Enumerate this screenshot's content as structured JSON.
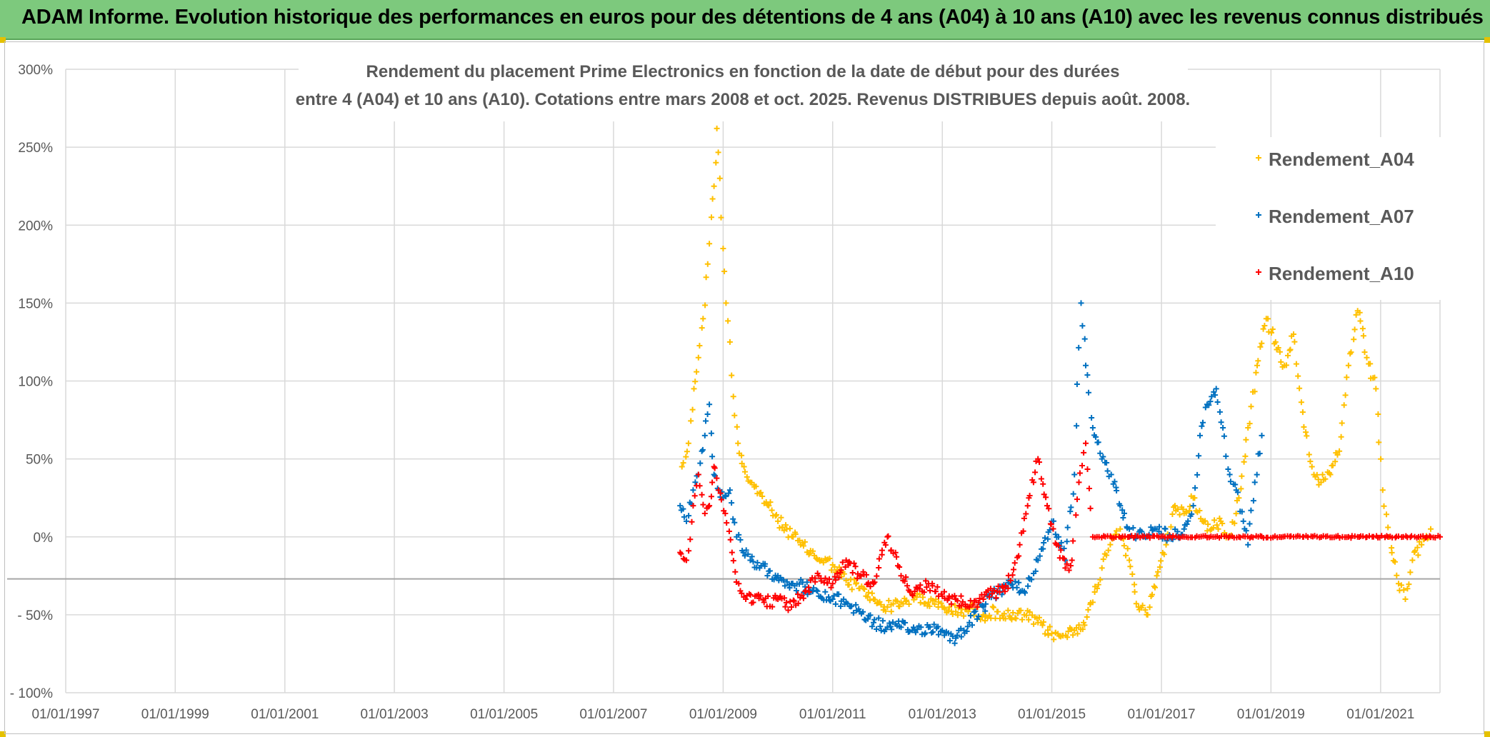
{
  "banner": {
    "title": "ADAM Informe. Evolution historique des performances en euros pour des détentions de 4 ans (A04) à 10 ans (A10) avec les revenus connus distribués"
  },
  "colors": {
    "banner": "#7dc97d",
    "grid": "#d9d9d9",
    "text": "#595959",
    "A04": "#ffc000",
    "A07": "#0070c0",
    "A10": "#ff0000"
  },
  "chart_data": {
    "type": "scatter",
    "title_lines": [
      "Rendement du placement Prime Electronics  en fonction de la date de début pour des durées",
      "entre 4 (A04) et 10 ans (A10). Cotations entre mars 2008 et oct. 2025. Revenus DISTRIBUES depuis août. 2008."
    ],
    "xlabel": "",
    "ylabel": "",
    "x_range": [
      "1997-01-01",
      "2022-02-01"
    ],
    "y_range": [
      -100,
      300
    ],
    "x_ticks": [
      "01/01/1997",
      "01/01/1999",
      "01/01/2001",
      "01/01/2003",
      "01/01/2005",
      "01/01/2007",
      "01/01/2009",
      "01/01/2011",
      "01/01/2013",
      "01/01/2015",
      "01/01/2017",
      "01/01/2019",
      "01/01/2021"
    ],
    "x_tick_dates": [
      "1997-01-01",
      "1999-01-01",
      "2001-01-01",
      "2003-01-01",
      "2005-01-01",
      "2007-01-01",
      "2009-01-01",
      "2011-01-01",
      "2013-01-01",
      "2015-01-01",
      "2017-01-01",
      "2019-01-01",
      "2021-01-01"
    ],
    "y_ticks": [
      300,
      250,
      200,
      150,
      100,
      50,
      0,
      -50,
      -100
    ],
    "y_tick_labels": [
      "300%",
      "250%",
      "200%",
      "150%",
      "100%",
      "50%",
      "0%",
      "- 50%",
      "- 100%"
    ],
    "grid": true,
    "legend_position": "top-right",
    "marker": "+",
    "series": [
      {
        "name": "Rendement_A04",
        "color": "#ffc000",
        "points": [
          [
            "2008-04-01",
            45
          ],
          [
            "2008-05-15",
            60
          ],
          [
            "2008-06-20",
            95
          ],
          [
            "2008-07-20",
            115
          ],
          [
            "2008-08-20",
            140
          ],
          [
            "2008-09-20",
            175
          ],
          [
            "2008-10-15",
            205
          ],
          [
            "2008-11-01",
            225
          ],
          [
            "2008-11-20",
            262
          ],
          [
            "2008-12-10",
            230
          ],
          [
            "2009-01-01",
            185
          ],
          [
            "2009-01-20",
            150
          ],
          [
            "2009-02-15",
            125
          ],
          [
            "2009-03-10",
            90
          ],
          [
            "2009-04-10",
            60
          ],
          [
            "2009-05-20",
            45
          ],
          [
            "2009-07-01",
            35
          ],
          [
            "2009-09-01",
            28
          ],
          [
            "2009-11-01",
            20
          ],
          [
            "2010-01-01",
            10
          ],
          [
            "2010-03-01",
            5
          ],
          [
            "2010-06-01",
            -5
          ],
          [
            "2010-09-01",
            -12
          ],
          [
            "2011-01-01",
            -18
          ],
          [
            "2011-04-01",
            -28
          ],
          [
            "2011-07-01",
            -33
          ],
          [
            "2011-10-01",
            -40
          ],
          [
            "2012-01-01",
            -45
          ],
          [
            "2012-04-01",
            -42
          ],
          [
            "2012-07-01",
            -38
          ],
          [
            "2012-10-01",
            -42
          ],
          [
            "2013-01-01",
            -45
          ],
          [
            "2013-04-01",
            -48
          ],
          [
            "2013-07-01",
            -46
          ],
          [
            "2013-10-01",
            -50
          ],
          [
            "2014-01-01",
            -48
          ],
          [
            "2014-04-01",
            -52
          ],
          [
            "2014-07-01",
            -50
          ],
          [
            "2014-10-01",
            -55
          ],
          [
            "2015-01-01",
            -62
          ],
          [
            "2015-03-01",
            -64
          ],
          [
            "2015-06-01",
            -60
          ],
          [
            "2015-08-01",
            -55
          ],
          [
            "2015-10-01",
            -42
          ],
          [
            "2015-12-01",
            -20
          ],
          [
            "2016-02-01",
            0
          ],
          [
            "2016-04-01",
            5
          ],
          [
            "2016-06-01",
            -15
          ],
          [
            "2016-08-01",
            -45
          ],
          [
            "2016-10-01",
            -50
          ],
          [
            "2016-12-01",
            -25
          ],
          [
            "2017-02-01",
            -5
          ],
          [
            "2017-04-01",
            20
          ],
          [
            "2017-06-01",
            15
          ],
          [
            "2017-08-01",
            25
          ],
          [
            "2017-10-01",
            10
          ],
          [
            "2017-12-01",
            5
          ],
          [
            "2018-02-01",
            10
          ],
          [
            "2018-04-01",
            0
          ],
          [
            "2018-06-01",
            25
          ],
          [
            "2018-08-01",
            70
          ],
          [
            "2018-10-01",
            110
          ],
          [
            "2018-12-01",
            140
          ],
          [
            "2019-02-01",
            125
          ],
          [
            "2019-04-01",
            110
          ],
          [
            "2019-06-01",
            130
          ],
          [
            "2019-08-01",
            80
          ],
          [
            "2019-10-01",
            45
          ],
          [
            "2019-12-01",
            35
          ],
          [
            "2020-02-01",
            40
          ],
          [
            "2020-04-01",
            55
          ],
          [
            "2020-06-01",
            110
          ],
          [
            "2020-08-01",
            145
          ],
          [
            "2020-10-01",
            115
          ],
          [
            "2020-12-01",
            95
          ],
          [
            "2021-01-15",
            30
          ],
          [
            "2021-03-01",
            0
          ],
          [
            "2021-05-01",
            -30
          ],
          [
            "2021-06-15",
            -40
          ],
          [
            "2021-08-01",
            -15
          ],
          [
            "2021-10-01",
            -5
          ],
          [
            "2021-12-01",
            5
          ]
        ]
      },
      {
        "name": "Rendement_A07",
        "color": "#0070c0",
        "points": [
          [
            "2008-03-20",
            20
          ],
          [
            "2008-05-01",
            10
          ],
          [
            "2008-06-15",
            30
          ],
          [
            "2008-07-20",
            40
          ],
          [
            "2008-09-01",
            65
          ],
          [
            "2008-10-01",
            85
          ],
          [
            "2008-11-01",
            40
          ],
          [
            "2008-12-01",
            30
          ],
          [
            "2009-01-01",
            25
          ],
          [
            "2009-02-15",
            30
          ],
          [
            "2009-04-01",
            0
          ],
          [
            "2009-05-15",
            -10
          ],
          [
            "2009-07-01",
            -15
          ],
          [
            "2009-09-01",
            -20
          ],
          [
            "2009-11-01",
            -22
          ],
          [
            "2010-01-01",
            -25
          ],
          [
            "2010-04-01",
            -30
          ],
          [
            "2010-07-01",
            -32
          ],
          [
            "2010-10-01",
            -38
          ],
          [
            "2011-01-01",
            -40
          ],
          [
            "2011-04-01",
            -42
          ],
          [
            "2011-07-01",
            -48
          ],
          [
            "2011-10-01",
            -55
          ],
          [
            "2012-01-01",
            -58
          ],
          [
            "2012-04-01",
            -58
          ],
          [
            "2012-07-01",
            -60
          ],
          [
            "2012-10-01",
            -58
          ],
          [
            "2013-01-01",
            -60
          ],
          [
            "2013-04-01",
            -65
          ],
          [
            "2013-07-01",
            -55
          ],
          [
            "2013-10-01",
            -45
          ],
          [
            "2014-01-01",
            -35
          ],
          [
            "2014-04-01",
            -30
          ],
          [
            "2014-07-01",
            -35
          ],
          [
            "2014-10-01",
            -15
          ],
          [
            "2015-01-01",
            10
          ],
          [
            "2015-02-15",
            0
          ],
          [
            "2015-04-01",
            -15
          ],
          [
            "2015-06-01",
            40
          ],
          [
            "2015-07-15",
            150
          ],
          [
            "2015-08-15",
            110
          ],
          [
            "2015-10-01",
            70
          ],
          [
            "2015-12-01",
            50
          ],
          [
            "2016-02-01",
            40
          ],
          [
            "2016-04-01",
            20
          ],
          [
            "2016-06-01",
            5
          ],
          [
            "2016-09-01",
            0
          ],
          [
            "2016-12-01",
            5
          ],
          [
            "2017-03-01",
            0
          ],
          [
            "2017-06-01",
            5
          ],
          [
            "2017-08-01",
            20
          ],
          [
            "2017-09-15",
            65
          ],
          [
            "2017-11-01",
            85
          ],
          [
            "2018-01-01",
            95
          ],
          [
            "2018-02-15",
            70
          ],
          [
            "2018-04-01",
            40
          ],
          [
            "2018-05-15",
            30
          ],
          [
            "2018-07-01",
            10
          ],
          [
            "2018-08-01",
            -5
          ],
          [
            "2018-09-15",
            35
          ],
          [
            "2018-11-01",
            65
          ]
        ]
      },
      {
        "name": "Rendement_A10",
        "color": "#ff0000",
        "points": [
          [
            "2008-03-20",
            -10
          ],
          [
            "2008-05-01",
            -15
          ],
          [
            "2008-06-15",
            20
          ],
          [
            "2008-07-20",
            40
          ],
          [
            "2008-09-01",
            15
          ],
          [
            "2008-10-01",
            20
          ],
          [
            "2008-11-01",
            45
          ],
          [
            "2008-12-01",
            30
          ],
          [
            "2009-01-15",
            15
          ],
          [
            "2009-03-01",
            -10
          ],
          [
            "2009-04-15",
            -30
          ],
          [
            "2009-06-01",
            -40
          ],
          [
            "2009-08-01",
            -38
          ],
          [
            "2009-10-01",
            -42
          ],
          [
            "2010-01-01",
            -40
          ],
          [
            "2010-04-01",
            -45
          ],
          [
            "2010-07-01",
            -35
          ],
          [
            "2010-10-01",
            -25
          ],
          [
            "2011-01-01",
            -30
          ],
          [
            "2011-04-01",
            -15
          ],
          [
            "2011-07-01",
            -25
          ],
          [
            "2011-10-01",
            -30
          ],
          [
            "2012-01-01",
            0
          ],
          [
            "2012-04-01",
            -25
          ],
          [
            "2012-07-01",
            -35
          ],
          [
            "2012-10-01",
            -30
          ],
          [
            "2013-01-01",
            -38
          ],
          [
            "2013-04-01",
            -40
          ],
          [
            "2013-07-01",
            -45
          ],
          [
            "2013-10-01",
            -40
          ],
          [
            "2014-01-01",
            -35
          ],
          [
            "2014-04-01",
            -28
          ],
          [
            "2014-06-01",
            -5
          ],
          [
            "2014-08-01",
            25
          ],
          [
            "2014-10-01",
            50
          ],
          [
            "2014-12-01",
            20
          ],
          [
            "2015-02-01",
            -5
          ],
          [
            "2015-04-01",
            -20
          ],
          [
            "2015-05-15",
            -15
          ],
          [
            "2015-07-01",
            35
          ],
          [
            "2015-08-15",
            60
          ],
          [
            "2015-10-01",
            0
          ],
          [
            "2016-06-01",
            0
          ],
          [
            "2017-06-01",
            0
          ],
          [
            "2018-06-01",
            0
          ],
          [
            "2019-06-01",
            0
          ],
          [
            "2020-06-01",
            0
          ],
          [
            "2021-06-01",
            0
          ],
          [
            "2022-02-01",
            0
          ]
        ]
      }
    ]
  }
}
